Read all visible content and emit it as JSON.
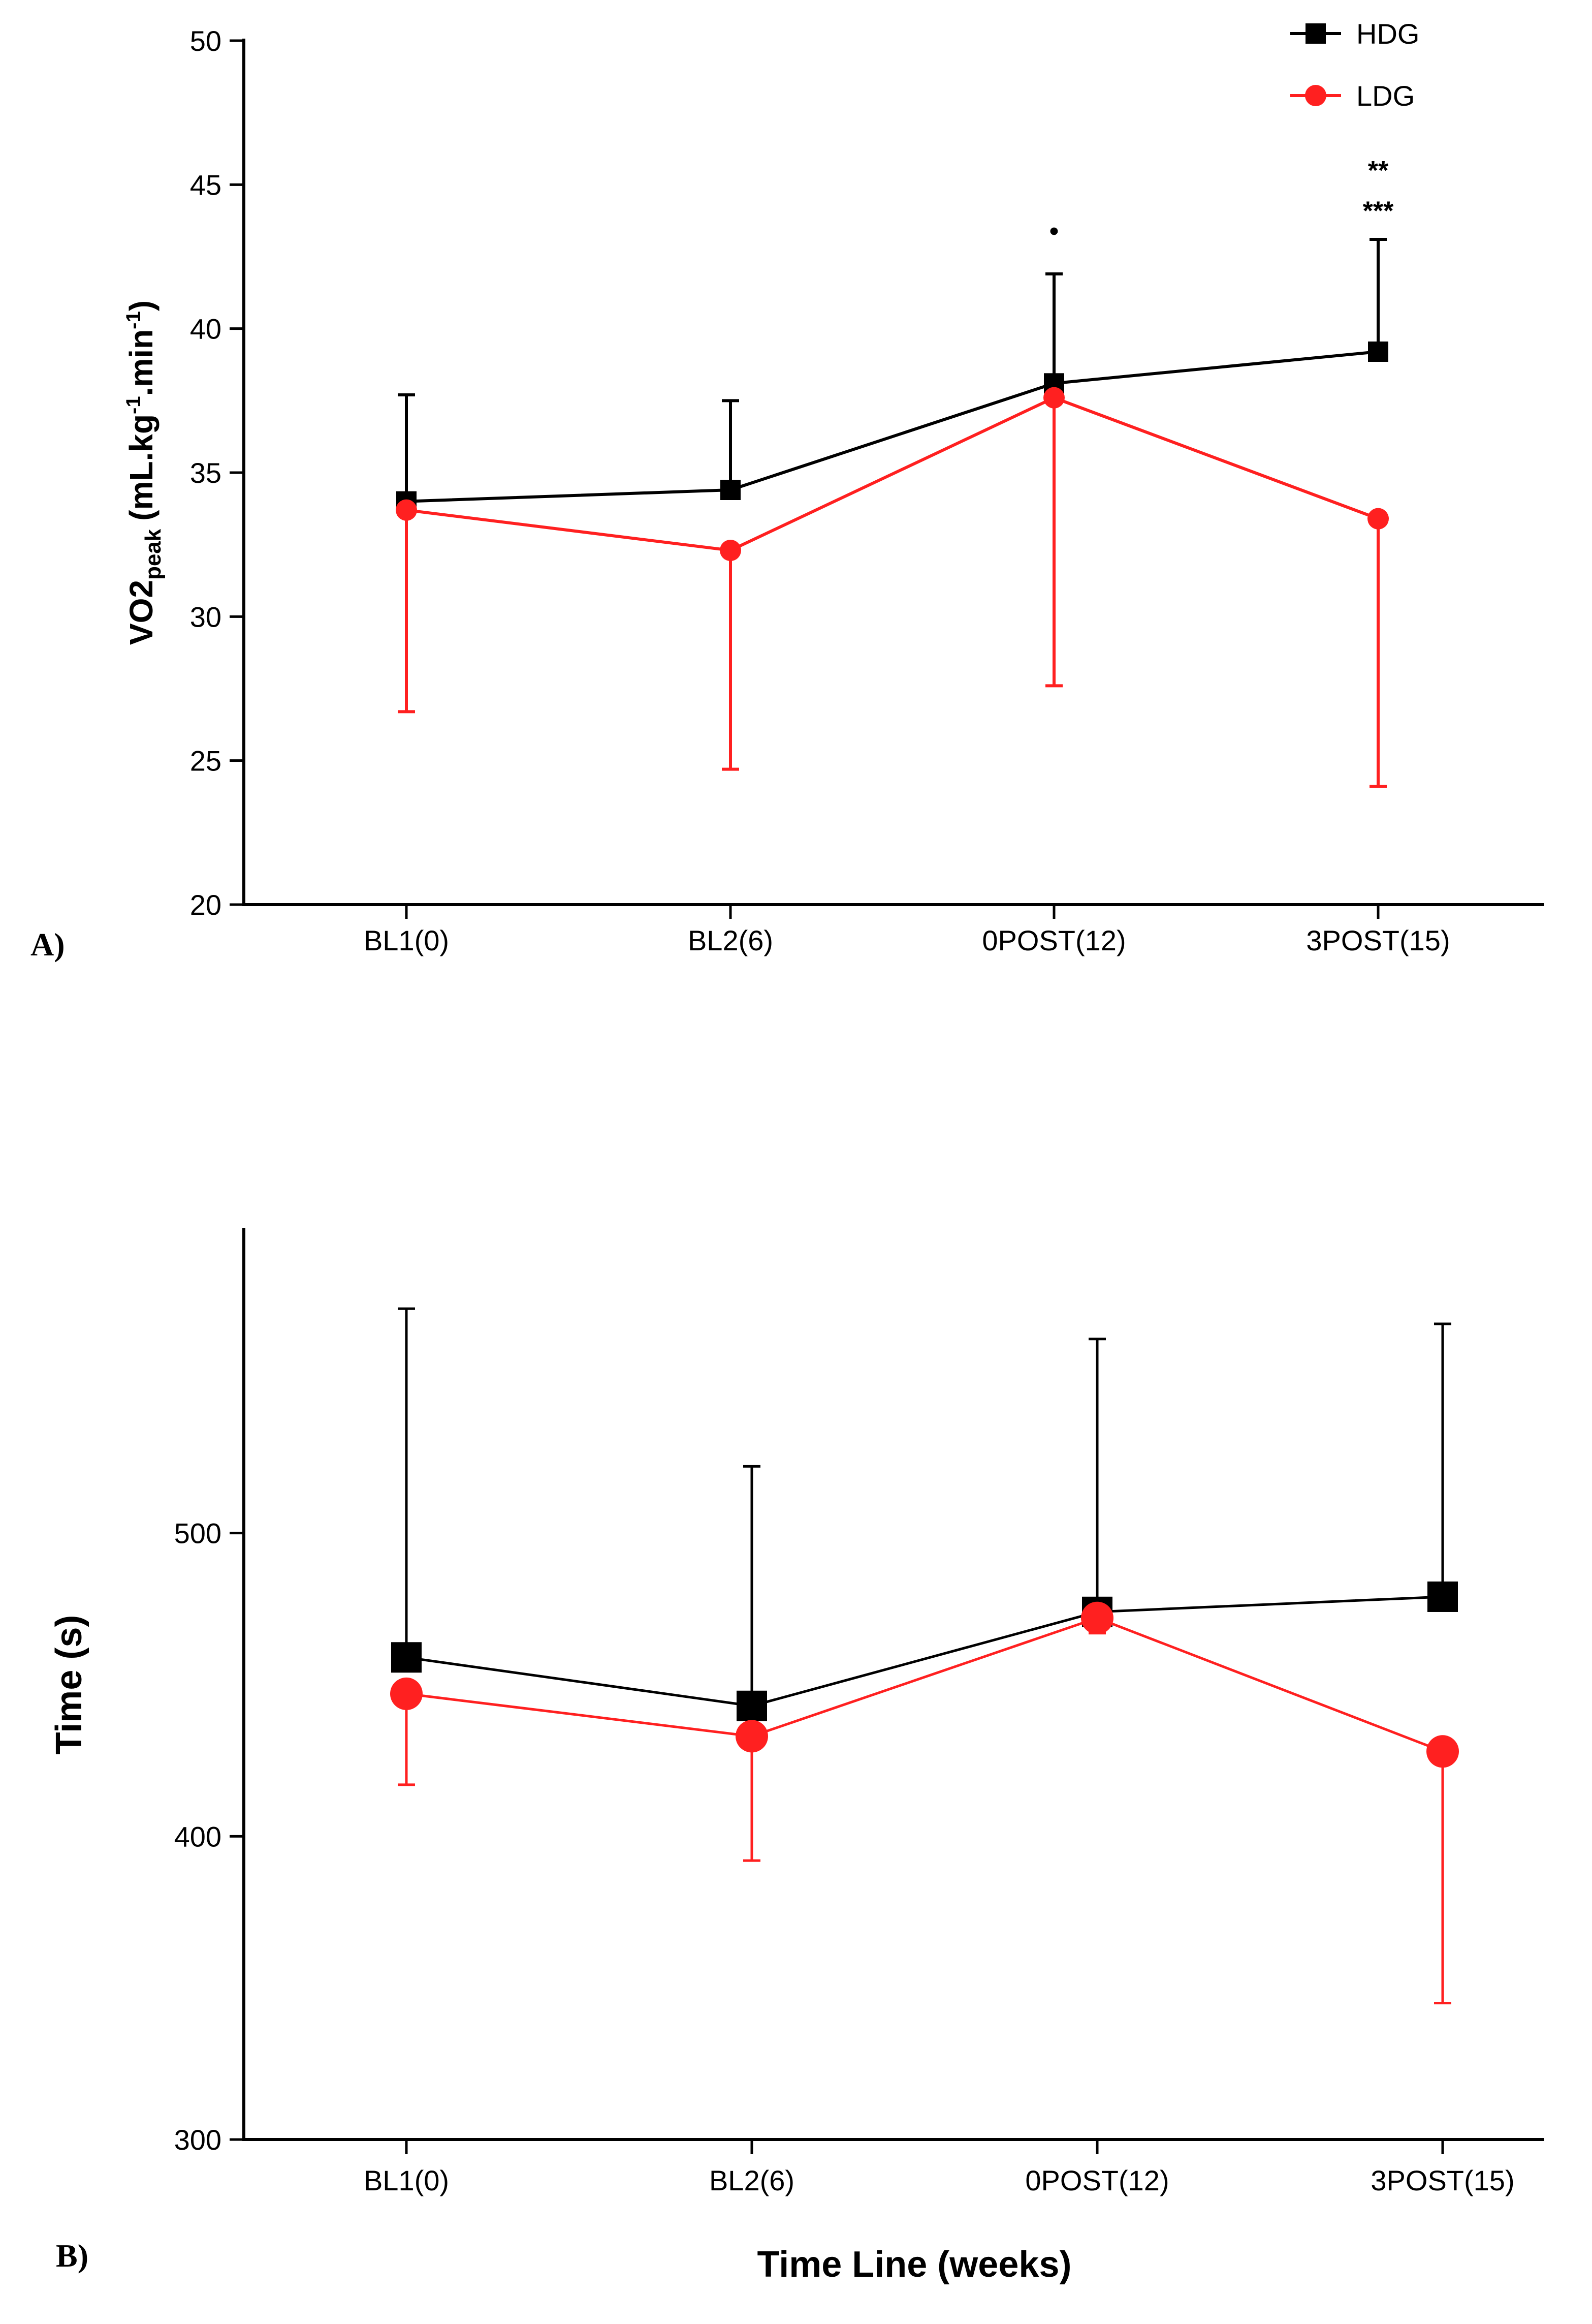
{
  "chart_data": [
    {
      "type": "line",
      "panel_label": "A)",
      "title": "",
      "xlabel": "",
      "ylabel": "VO2",
      "ylabel_sub": "peak",
      "ylabel_units_parts": [
        "(mL.kg",
        "-1",
        ".min",
        "-1",
        ")"
      ],
      "categories": [
        "BL1(0)",
        "BL2(6)",
        "0POST(12)",
        "3POST(15)"
      ],
      "ylim": [
        20,
        50
      ],
      "yticks": [
        20,
        25,
        30,
        35,
        40,
        45,
        50
      ],
      "grid": false,
      "legend_position": "top-right",
      "series": [
        {
          "name": "HDG",
          "color": "#000000",
          "marker": "square",
          "values": [
            34.0,
            34.4,
            38.1,
            39.2
          ],
          "error_upper": [
            37.7,
            37.5,
            41.9,
            43.1
          ]
        },
        {
          "name": "LDG",
          "color": "#ff2020",
          "marker": "circle",
          "values": [
            33.7,
            32.3,
            37.6,
            33.4
          ],
          "error_lower": [
            26.7,
            24.7,
            27.6,
            24.1
          ]
        }
      ],
      "annotations": [
        {
          "category": "0POST(12)",
          "text": "•",
          "y": 43.4
        },
        {
          "category": "3POST(15)",
          "text": "**",
          "y": 45.5
        },
        {
          "category": "3POST(15)",
          "text": "***",
          "y": 44.1
        }
      ]
    },
    {
      "type": "line",
      "panel_label": "B)",
      "title": "",
      "xlabel": "Time Line (weeks)",
      "ylabel": "Time (s)",
      "categories": [
        "BL1(0)",
        "BL2(6)",
        "0POST(12)",
        "3POST(15)"
      ],
      "ylim": [
        300,
        600
      ],
      "yticks": [
        300,
        400,
        500
      ],
      "grid": false,
      "series": [
        {
          "name": "HDG",
          "color": "#000000",
          "marker": "square",
          "values": [
            459,
            443,
            474,
            479
          ],
          "error_upper": [
            574,
            522,
            564,
            569
          ]
        },
        {
          "name": "LDG",
          "color": "#ff2020",
          "marker": "circle",
          "values": [
            447,
            433,
            472,
            428
          ],
          "error_lower": [
            417,
            392,
            467,
            345
          ]
        }
      ]
    }
  ]
}
